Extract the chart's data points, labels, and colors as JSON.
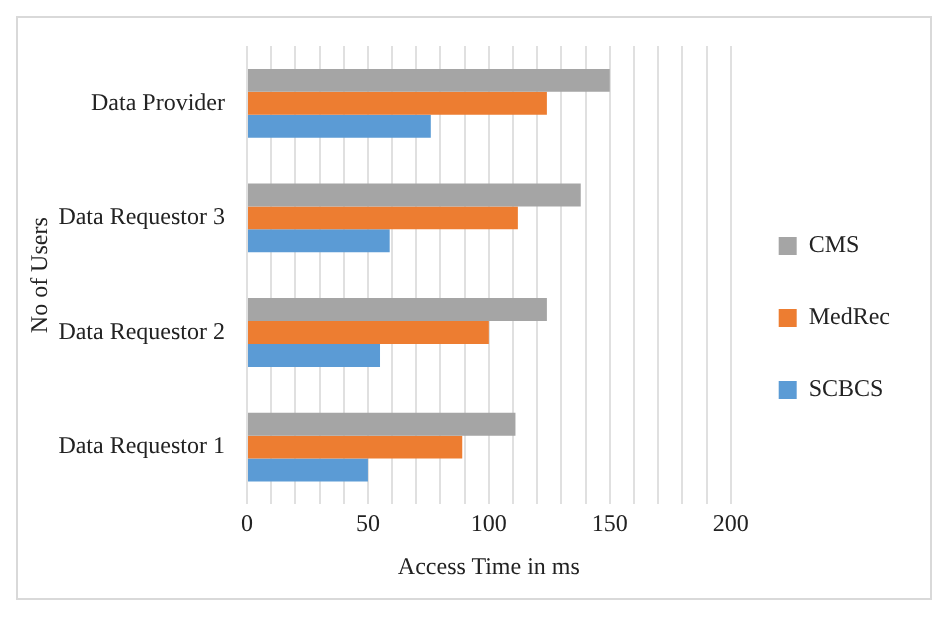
{
  "chart_data": {
    "type": "bar",
    "orientation": "horizontal",
    "xlabel": "Access Time in ms",
    "ylabel": "No of Users",
    "categories": [
      "Data Provider",
      "Data Requestor 3",
      "Data Requestor 2",
      "Data Requestor 1"
    ],
    "series": [
      {
        "name": "CMS",
        "color": "#a5a5a5",
        "values": [
          150,
          138,
          124,
          111
        ]
      },
      {
        "name": "MedRec",
        "color": "#ed7d31",
        "values": [
          124,
          112,
          100,
          89
        ]
      },
      {
        "name": "SCBCS",
        "color": "#5b9bd5",
        "values": [
          76,
          59,
          55,
          50
        ]
      }
    ],
    "xlim": [
      0,
      200
    ],
    "xticks": [
      0,
      {
        "value": 10,
        "label": null
      },
      {
        "value": 20,
        "label": null
      },
      {
        "value": 30,
        "label": null
      },
      {
        "value": 40,
        "label": null
      },
      50,
      {
        "value": 60,
        "label": null
      },
      {
        "value": 70,
        "label": null
      },
      {
        "value": 80,
        "label": null
      },
      {
        "value": 90,
        "label": null
      },
      100,
      {
        "value": 110,
        "label": null
      },
      {
        "value": 120,
        "label": null
      },
      {
        "value": 130,
        "label": null
      },
      {
        "value": 140,
        "label": null
      },
      150,
      {
        "value": 160,
        "label": null
      },
      {
        "value": 170,
        "label": null
      },
      {
        "value": 180,
        "label": null
      },
      {
        "value": 190,
        "label": null
      },
      200
    ],
    "grid": "x",
    "legend": "right"
  }
}
